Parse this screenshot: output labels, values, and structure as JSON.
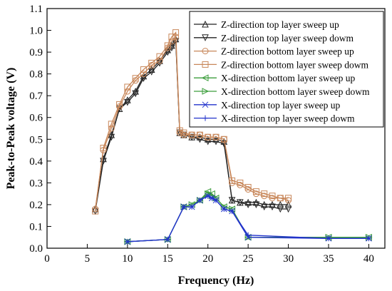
{
  "chart_data": {
    "type": "line",
    "title": "",
    "xlabel": "Frequency (Hz)",
    "ylabel": "Peak-to-Peak voltage (V)",
    "xlim": [
      0,
      42
    ],
    "ylim": [
      0.0,
      1.1
    ],
    "xticks": [
      0,
      5,
      10,
      15,
      20,
      25,
      30,
      35,
      40
    ],
    "yticks": [
      0.0,
      0.1,
      0.2,
      0.3,
      0.4,
      0.5,
      0.6,
      0.7,
      0.8,
      0.9,
      1.0,
      1.1
    ],
    "xtick_labels": [
      "0",
      "5",
      "10",
      "15",
      "20",
      "25",
      "30",
      "35",
      "40"
    ],
    "ytick_labels": [
      "0.0",
      "0.1",
      "0.2",
      "0.3",
      "0.4",
      "0.5",
      "0.6",
      "0.7",
      "0.8",
      "0.9",
      "1.0",
      "1.1"
    ],
    "grid": false,
    "legend_position": "top-right",
    "series": [
      {
        "name": "Z-direction top layer sweep up",
        "color": "#222222",
        "marker": "triangle-up",
        "x": [
          6,
          7,
          8,
          9,
          10,
          11,
          12,
          13,
          14,
          15,
          15.5,
          16,
          16.5,
          17,
          18,
          19,
          20,
          21,
          22,
          23,
          24,
          25,
          26,
          27,
          28,
          29,
          30
        ],
        "y": [
          0.18,
          0.41,
          0.52,
          0.64,
          0.68,
          0.72,
          0.79,
          0.82,
          0.86,
          0.91,
          0.93,
          0.96,
          0.53,
          0.52,
          0.51,
          0.51,
          0.5,
          0.5,
          0.49,
          0.22,
          0.21,
          0.21,
          0.21,
          0.2,
          0.2,
          0.2,
          0.2
        ]
      },
      {
        "name": "Z-direction top layer sweep dowm",
        "color": "#222222",
        "marker": "triangle-down",
        "x": [
          6,
          7,
          8,
          9,
          10,
          11,
          12,
          13,
          14,
          15,
          15.5,
          16,
          16.5,
          17,
          18,
          19,
          20,
          21,
          22,
          23,
          24,
          25,
          26,
          27,
          28,
          29,
          30
        ],
        "y": [
          0.17,
          0.4,
          0.51,
          0.64,
          0.67,
          0.71,
          0.78,
          0.81,
          0.85,
          0.9,
          0.92,
          0.95,
          0.53,
          0.52,
          0.51,
          0.5,
          0.49,
          0.49,
          0.48,
          0.22,
          0.21,
          0.2,
          0.2,
          0.19,
          0.19,
          0.18,
          0.18
        ]
      },
      {
        "name": "Z-direction bottom layer sweep up",
        "color": "#c8875a",
        "marker": "circle",
        "x": [
          6,
          7,
          8,
          9,
          10,
          11,
          12,
          13,
          14,
          15,
          15.5,
          16,
          16.5,
          17,
          18,
          19,
          20,
          21,
          22,
          23,
          24,
          25,
          26,
          27,
          28,
          29,
          30
        ],
        "y": [
          0.18,
          0.45,
          0.55,
          0.65,
          0.72,
          0.77,
          0.8,
          0.84,
          0.86,
          0.92,
          0.95,
          0.97,
          0.53,
          0.52,
          0.52,
          0.52,
          0.51,
          0.51,
          0.5,
          0.3,
          0.29,
          0.27,
          0.25,
          0.24,
          0.23,
          0.23,
          0.22
        ]
      },
      {
        "name": "Z-direction bottom layer sweep dowm",
        "color": "#c8875a",
        "marker": "square",
        "x": [
          6,
          7,
          8,
          9,
          10,
          11,
          12,
          13,
          14,
          15,
          15.5,
          16,
          16.5,
          17,
          18,
          19,
          20,
          21,
          22,
          23,
          24,
          25,
          26,
          27,
          28,
          29,
          30
        ],
        "y": [
          0.17,
          0.46,
          0.57,
          0.66,
          0.74,
          0.78,
          0.82,
          0.85,
          0.88,
          0.93,
          0.97,
          0.99,
          0.54,
          0.53,
          0.52,
          0.52,
          0.51,
          0.51,
          0.5,
          0.31,
          0.3,
          0.28,
          0.26,
          0.25,
          0.24,
          0.23,
          0.23
        ]
      },
      {
        "name": "X-direction bottom layer sweep up",
        "color": "#3c9e3c",
        "marker": "triangle-left",
        "x": [
          10,
          15,
          17,
          18,
          19,
          20,
          20.5,
          21,
          22,
          23,
          25,
          35,
          40
        ],
        "y": [
          0.03,
          0.04,
          0.19,
          0.2,
          0.22,
          0.26,
          0.25,
          0.23,
          0.19,
          0.18,
          0.05,
          0.05,
          0.05
        ]
      },
      {
        "name": "X-direction bottom layer sweep dowm",
        "color": "#3c9e3c",
        "marker": "triangle-right",
        "x": [
          10,
          15,
          17,
          18,
          19,
          20,
          20.5,
          21,
          22,
          23,
          25,
          35,
          40
        ],
        "y": [
          0.03,
          0.04,
          0.19,
          0.2,
          0.22,
          0.25,
          0.24,
          0.23,
          0.19,
          0.18,
          0.05,
          0.05,
          0.05
        ]
      },
      {
        "name": "X-direction top layer sweep up",
        "color": "#2233cc",
        "marker": "x",
        "x": [
          10,
          15,
          17,
          18,
          19,
          20,
          20.5,
          21,
          22,
          23,
          25,
          35,
          40
        ],
        "y": [
          0.03,
          0.04,
          0.19,
          0.19,
          0.22,
          0.24,
          0.23,
          0.22,
          0.18,
          0.17,
          0.05,
          0.045,
          0.045
        ]
      },
      {
        "name": "X-direction top layer sweep dowm",
        "color": "#2233cc",
        "marker": "plus",
        "x": [
          10,
          15,
          17,
          18,
          19,
          20,
          20.5,
          21,
          22,
          23,
          25,
          35,
          40
        ],
        "y": [
          0.03,
          0.04,
          0.19,
          0.19,
          0.22,
          0.24,
          0.23,
          0.22,
          0.18,
          0.17,
          0.06,
          0.045,
          0.045
        ]
      }
    ]
  }
}
